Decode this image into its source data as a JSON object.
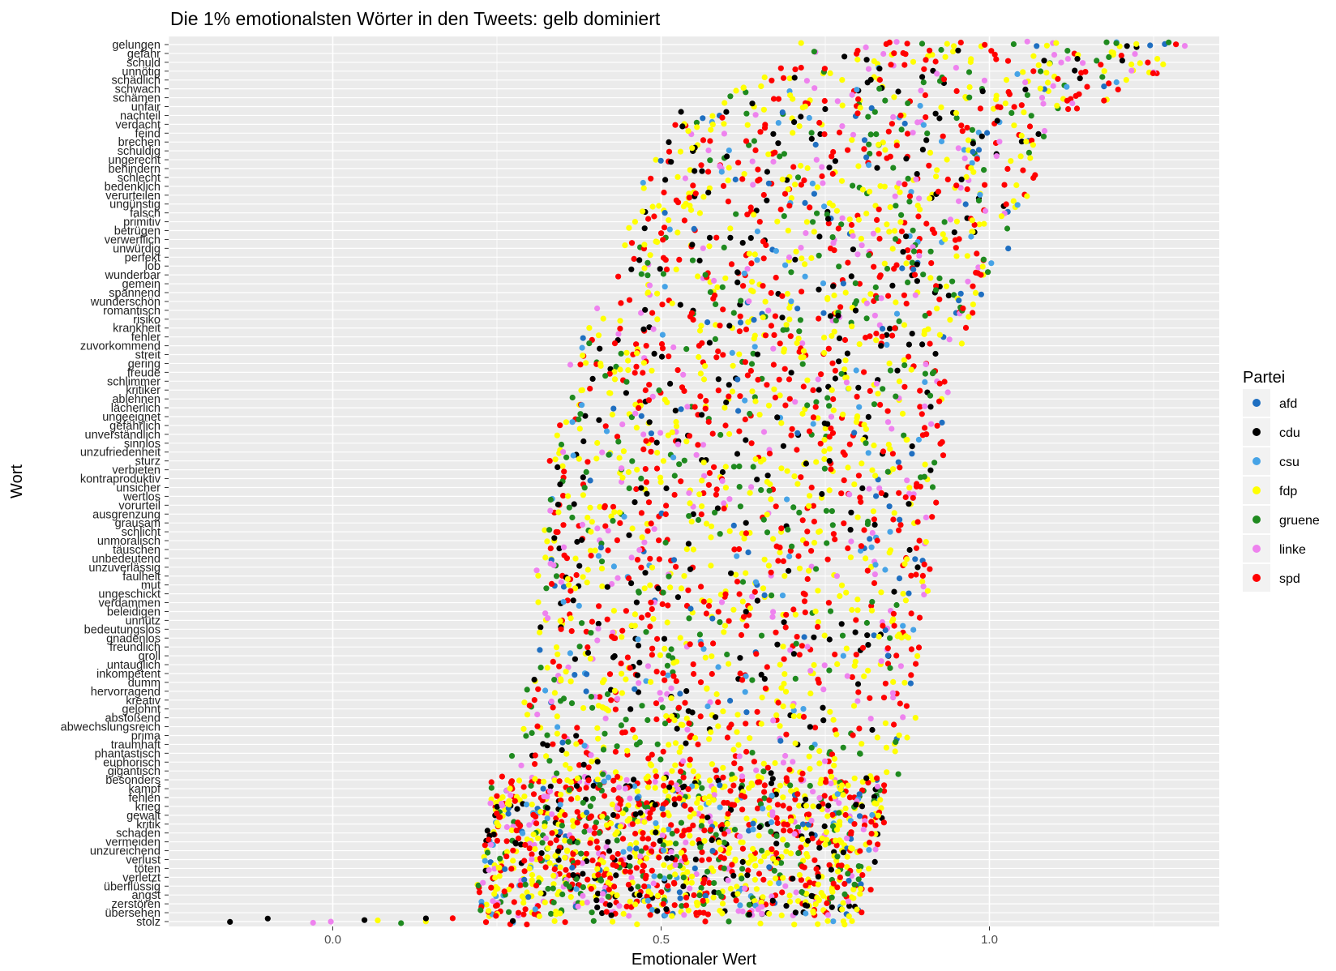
{
  "chart_data": {
    "type": "scatter",
    "title": "Die 1% emotionalsten Wörter in den Tweets: gelb dominiert",
    "xlabel": "Emotionaler Wert",
    "ylabel": "Wort",
    "xlim": [
      -0.25,
      1.35
    ],
    "x_ticks": [
      0.0,
      0.5,
      1.0
    ],
    "x_tick_labels": [
      "0.0",
      "0.5",
      "1.0"
    ],
    "grid": true,
    "legend": {
      "title": "Partei",
      "position": "right",
      "entries": [
        {
          "name": "afd",
          "color": "#1f6fc1"
        },
        {
          "name": "cdu",
          "color": "#000000"
        },
        {
          "name": "csu",
          "color": "#46a3e6"
        },
        {
          "name": "fdp",
          "color": "#ffff00"
        },
        {
          "name": "gruene",
          "color": "#1f8a1f"
        },
        {
          "name": "linke",
          "color": "#ee82ee"
        },
        {
          "name": "spd",
          "color": "#ff0000"
        }
      ]
    },
    "words_top_to_bottom": [
      "gelungen",
      "gefahr",
      "schuld",
      "unnötig",
      "schädlich",
      "schwach",
      "schämen",
      "unfair",
      "nachteil",
      "verdacht",
      "feind",
      "brechen",
      "schuldig",
      "ungerecht",
      "behindern",
      "schlecht",
      "bedenklich",
      "verurteilen",
      "ungünstig",
      "falsch",
      "primitiv",
      "betrügen",
      "verwerflich",
      "unwürdig",
      "perfekt",
      "lob",
      "wunderbar",
      "gemein",
      "spannend",
      "wunderschön",
      "romantisch",
      "risiko",
      "krankheit",
      "fehler",
      "zuvorkommend",
      "streit",
      "gering",
      "freude",
      "schlimmer",
      "kritiker",
      "ablehnen",
      "lächerlich",
      "ungeeignet",
      "gefährlich",
      "unverständlich",
      "sinnlos",
      "unzufriedenheit",
      "sturz",
      "verbieten",
      "kontraproduktiv",
      "unsicher",
      "wertlos",
      "vorurteil",
      "ausgrenzung",
      "grausam",
      "schlicht",
      "unmoralisch",
      "täuschen",
      "unbedeutend",
      "unzuverlässig",
      "faulheit",
      "mut",
      "ungeschickt",
      "verdammen",
      "beleidigen",
      "unnütz",
      "bedeutungslos",
      "gnadenlos",
      "freundlich",
      "groll",
      "untauglich",
      "inkompetent",
      "dumm",
      "hervorragend",
      "kreativ",
      "gelohnt",
      "abstoßend",
      "abwechslungsreich",
      "prima",
      "traumhaft",
      "phantastisch",
      "euphorisch",
      "gigantisch",
      "besonders",
      "kampf",
      "fehlen",
      "krieg",
      "gewalt",
      "kritik",
      "schaden",
      "vermeiden",
      "unzureichend",
      "verlust",
      "töten",
      "verletzt",
      "überflüssig",
      "angst",
      "zerstören",
      "übersehen",
      "stolz"
    ],
    "x_range_per_word": [
      [
        0.71,
        1.3
      ],
      [
        0.73,
        1.3
      ],
      [
        0.68,
        1.27
      ],
      [
        0.68,
        1.26
      ],
      [
        0.65,
        1.23
      ],
      [
        0.61,
        1.21
      ],
      [
        0.6,
        1.18
      ],
      [
        0.59,
        1.17
      ],
      [
        0.53,
        1.1
      ],
      [
        0.51,
        1.1
      ],
      [
        0.51,
        1.1
      ],
      [
        0.51,
        1.1
      ],
      [
        0.5,
        1.09
      ],
      [
        0.49,
        1.08
      ],
      [
        0.48,
        1.07
      ],
      [
        0.47,
        1.07
      ],
      [
        0.47,
        1.07
      ],
      [
        0.47,
        1.06
      ],
      [
        0.46,
        1.06
      ],
      [
        0.46,
        1.06
      ],
      [
        0.45,
        1.05
      ],
      [
        0.45,
        1.04
      ],
      [
        0.44,
        1.03
      ],
      [
        0.44,
        1.03
      ],
      [
        0.44,
        1.02
      ],
      [
        0.43,
        1.01
      ],
      [
        0.43,
        1.0
      ],
      [
        0.43,
        1.0
      ],
      [
        0.42,
        1.0
      ],
      [
        0.42,
        1.0
      ],
      [
        0.4,
        0.98
      ],
      [
        0.4,
        0.98
      ],
      [
        0.38,
        0.98
      ],
      [
        0.38,
        0.97
      ],
      [
        0.37,
        0.96
      ],
      [
        0.36,
        0.95
      ],
      [
        0.36,
        0.95
      ],
      [
        0.36,
        0.94
      ],
      [
        0.35,
        0.94
      ],
      [
        0.35,
        0.94
      ],
      [
        0.35,
        0.94
      ],
      [
        0.35,
        0.94
      ],
      [
        0.34,
        0.93
      ],
      [
        0.34,
        0.93
      ],
      [
        0.34,
        0.93
      ],
      [
        0.34,
        0.93
      ],
      [
        0.34,
        0.93
      ],
      [
        0.33,
        0.93
      ],
      [
        0.33,
        0.93
      ],
      [
        0.33,
        0.93
      ],
      [
        0.33,
        0.92
      ],
      [
        0.33,
        0.92
      ],
      [
        0.33,
        0.92
      ],
      [
        0.32,
        0.92
      ],
      [
        0.32,
        0.92
      ],
      [
        0.32,
        0.92
      ],
      [
        0.32,
        0.91
      ],
      [
        0.32,
        0.91
      ],
      [
        0.31,
        0.91
      ],
      [
        0.31,
        0.91
      ],
      [
        0.31,
        0.91
      ],
      [
        0.31,
        0.91
      ],
      [
        0.31,
        0.91
      ],
      [
        0.31,
        0.9
      ],
      [
        0.31,
        0.9
      ],
      [
        0.31,
        0.9
      ],
      [
        0.31,
        0.9
      ],
      [
        0.31,
        0.9
      ],
      [
        0.3,
        0.9
      ],
      [
        0.3,
        0.9
      ],
      [
        0.3,
        0.9
      ],
      [
        0.29,
        0.89
      ],
      [
        0.29,
        0.89
      ],
      [
        0.29,
        0.89
      ],
      [
        0.29,
        0.89
      ],
      [
        0.29,
        0.89
      ],
      [
        0.29,
        0.89
      ],
      [
        0.28,
        0.88
      ],
      [
        0.28,
        0.88
      ],
      [
        0.28,
        0.87
      ],
      [
        0.27,
        0.87
      ],
      [
        0.27,
        0.87
      ],
      [
        0.27,
        0.87
      ],
      [
        0.24,
        0.84
      ],
      [
        0.24,
        0.84
      ],
      [
        0.24,
        0.84
      ],
      [
        0.24,
        0.84
      ],
      [
        0.24,
        0.84
      ],
      [
        0.24,
        0.84
      ],
      [
        0.23,
        0.84
      ],
      [
        0.23,
        0.83
      ],
      [
        0.23,
        0.83
      ],
      [
        0.23,
        0.83
      ],
      [
        0.23,
        0.82
      ],
      [
        0.23,
        0.82
      ],
      [
        0.22,
        0.82
      ],
      [
        0.22,
        0.81
      ],
      [
        0.22,
        0.81
      ],
      [
        0.22,
        0.81
      ],
      [
        -0.22,
        0.81
      ]
    ]
  }
}
